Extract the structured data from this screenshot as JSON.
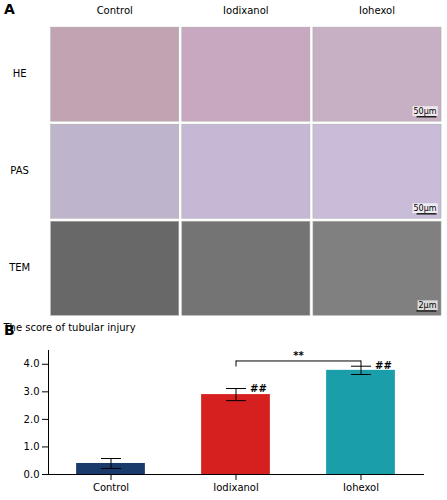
{
  "chart_data": {
    "type": "bar",
    "panel_label": "B",
    "ylabel": "The score of tubular injury",
    "categories": [
      "Control",
      "Iodixanol",
      "Iohexol"
    ],
    "values": [
      0.4,
      2.9,
      3.78
    ],
    "errors": [
      0.18,
      0.22,
      0.15
    ],
    "colors": [
      "#1a3a6b",
      "#d62020",
      "#1a9faa"
    ],
    "ylim": [
      0,
      4.5
    ],
    "yticks": [
      0,
      1,
      2,
      3,
      4
    ],
    "annotations": [
      {
        "text": "##",
        "category": "Iodixanol"
      },
      {
        "text": "##",
        "category": "Iohexol"
      }
    ],
    "bracket": {
      "from": "Iodixanol",
      "to": "Iohexol",
      "y": 4.12,
      "label": "**"
    }
  },
  "image_grid": {
    "panel_label": "A",
    "row_labels": [
      "HE",
      "PAS",
      "TEM"
    ],
    "col_labels": [
      "Control",
      "Iodixanol",
      "Iohexol"
    ],
    "scalebar_labels": [
      "50μm",
      "50μm",
      "2μm"
    ],
    "colors": [
      [
        "#c0a4b2",
        "#c8a8c0",
        "#c8b0c4"
      ],
      [
        "#beb4cc",
        "#c4b8d4",
        "#c8bcd8"
      ],
      [
        "#686868",
        "#747474",
        "#808080"
      ]
    ]
  }
}
